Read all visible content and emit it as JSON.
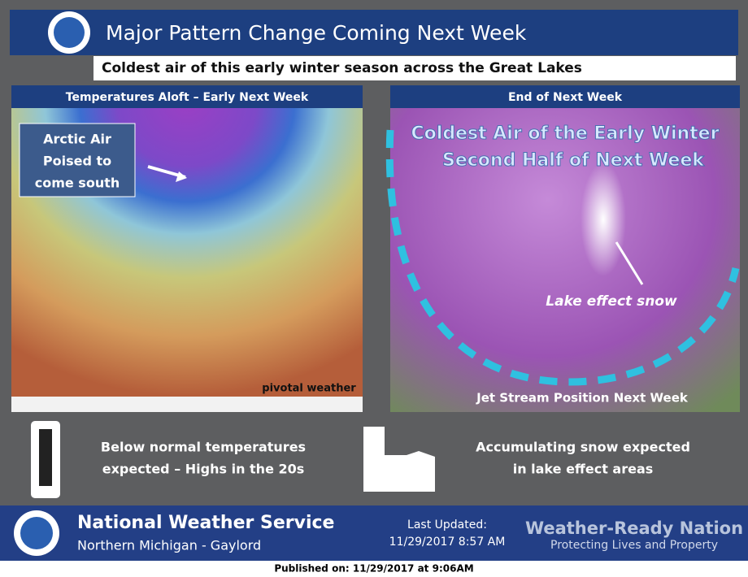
{
  "header": {
    "title": "Major Pattern Change Coming Next Week",
    "subtitle": "Coldest air of this early winter season across the Great Lakes"
  },
  "left_panel": {
    "title": "Temperatures Aloft – Early Next Week",
    "callout": [
      "Arctic Air",
      "Poised to",
      "come south"
    ],
    "watermark": "pivotal weather"
  },
  "right_panel": {
    "title": "End of Next Week",
    "headline": [
      "Coldest Air of the Early Winter",
      "Second Half of Next Week"
    ],
    "label": "Lake effect snow",
    "caption": "Jet Stream Position Next Week"
  },
  "notes": [
    [
      "Below normal temperatures",
      "expected – Highs in the 20s"
    ],
    [
      "Accumulating snow expected",
      "in lake effect areas"
    ]
  ],
  "footer": {
    "agency": "National Weather Service",
    "office": "Northern Michigan - Gaylord",
    "updated_label": "Last Updated:",
    "updated": "11/29/2017 8:57 AM",
    "slogan": "Weather-Ready Nation",
    "tagline": "Protecting Lives and Property"
  },
  "published": "Published on: 11/29/2017 at 9:06AM"
}
